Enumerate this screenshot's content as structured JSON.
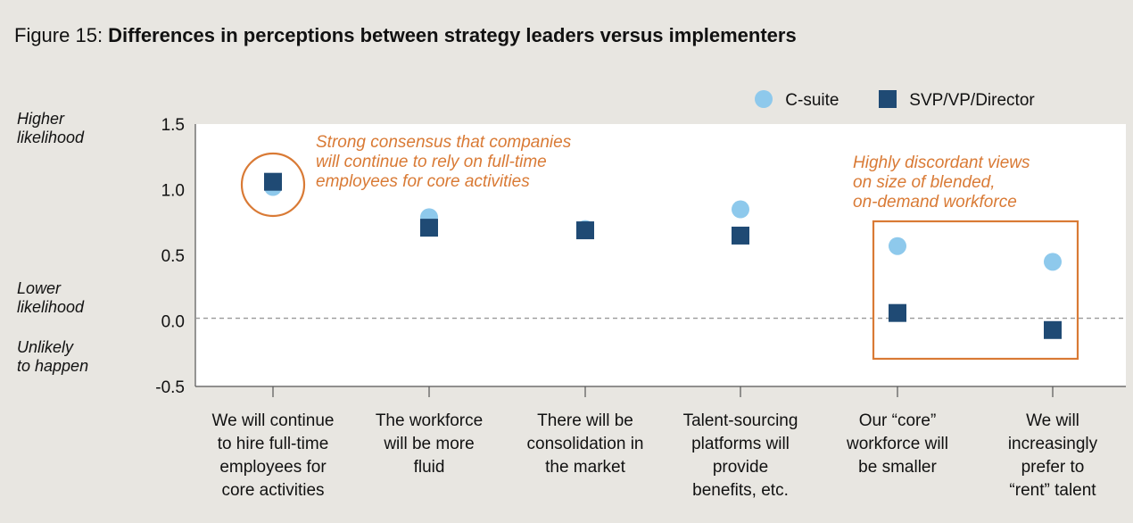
{
  "title": {
    "prefix": "Figure 15: ",
    "main": "Differences in perceptions between strategy leaders versus implementers"
  },
  "side_labels": {
    "higher": [
      "Higher",
      "likelihood"
    ],
    "lower": [
      "Lower",
      "likelihood"
    ],
    "unlikely": [
      "Unlikely",
      "to happen"
    ]
  },
  "colors": {
    "background": "#e8e6e1",
    "plot_background": "#ffffff",
    "csuite": "#8ec9ec",
    "svp": "#1f4a74",
    "annotation": "#d97a35",
    "zero_line": "#999999"
  },
  "chart_data": {
    "type": "scatter",
    "ylim": [
      -0.5,
      1.5
    ],
    "y_ticks": [
      "1.5",
      "1.0",
      "0.5",
      "0.0",
      "-0.5"
    ],
    "y_tick_values": [
      1.5,
      1.0,
      0.5,
      0.0,
      -0.5
    ],
    "categories": [
      [
        "We will continue",
        "to hire full-time",
        "employees for",
        "core activities"
      ],
      [
        "The workforce",
        "will be more",
        "fluid"
      ],
      [
        "There will be",
        "consolidation in",
        "the market"
      ],
      [
        "Talent-sourcing",
        "platforms will",
        "provide",
        "benefits, etc."
      ],
      [
        "Our “core”",
        "workforce will",
        "be smaller"
      ],
      [
        "We will",
        "increasingly",
        "prefer to",
        "“rent” talent"
      ]
    ],
    "series": [
      {
        "name": "C-suite",
        "marker": "circle",
        "values": [
          1.02,
          0.79,
          0.7,
          0.85,
          0.57,
          0.45
        ]
      },
      {
        "name": "SVP/VP/Director",
        "marker": "square",
        "values": [
          1.06,
          0.71,
          0.69,
          0.65,
          0.06,
          -0.07
        ]
      }
    ],
    "legend_position": "top-right",
    "grid": false,
    "reference_line": 0.02,
    "annotations": [
      {
        "text": [
          "Strong consensus that companies",
          "will continue to rely on full-time",
          "employees for core activities"
        ],
        "highlight": "circle",
        "category_index": 0
      },
      {
        "text": [
          "Highly discordant views",
          "on size of blended,",
          "on-demand workforce"
        ],
        "highlight": "box",
        "category_index": [
          4,
          5
        ]
      }
    ]
  }
}
